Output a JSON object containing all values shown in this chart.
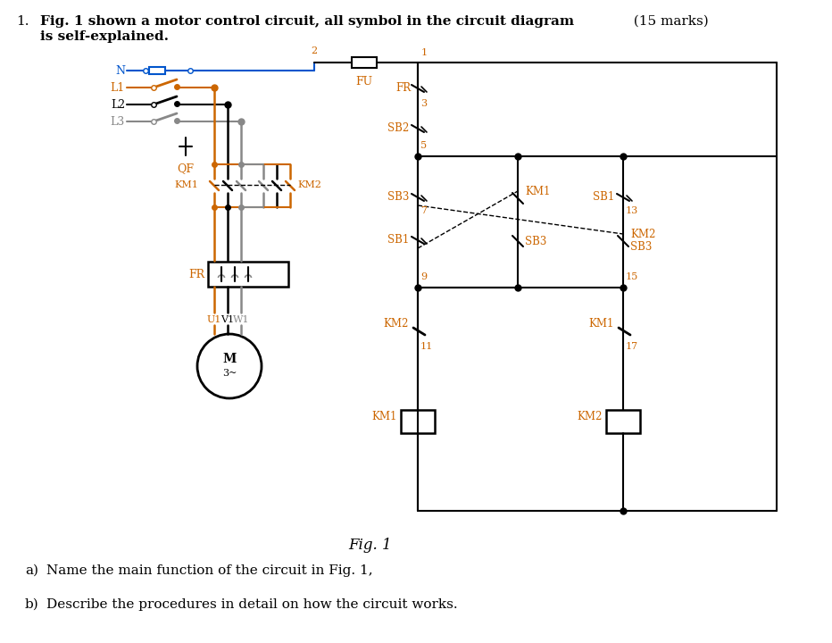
{
  "bg_color": "#ffffff",
  "text_color": "#000000",
  "orange_color": "#cc6600",
  "blue_color": "#0055cc",
  "gray_color": "#888888",
  "line_color": "#000000",
  "title_bold": "Fig. 1 shown a motor control circuit, all symbol in the circuit diagram",
  "title_marks": "  (15 marks)",
  "title_line2": "is self-explained.",
  "fig_label": "Fig. 1",
  "qa": "a)   Name the main function of the circuit in Fig. 1,",
  "qb": "b)   Describe the procedures in detail on how the circuit works."
}
